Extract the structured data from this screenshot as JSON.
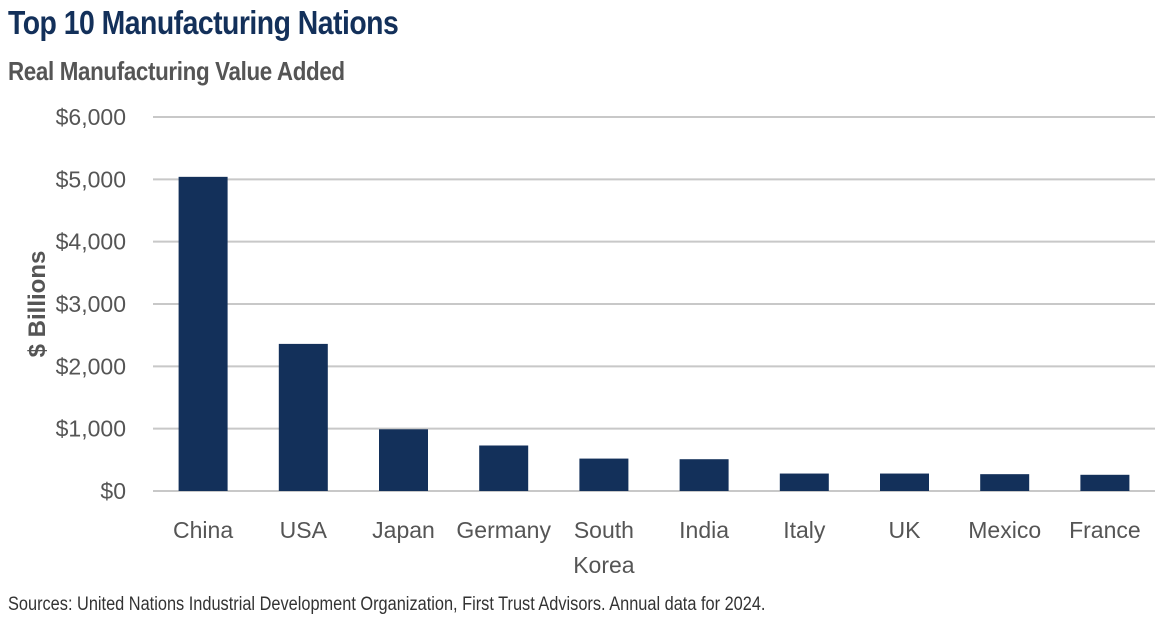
{
  "header": {
    "title": "Top 10 Manufacturing Nations",
    "subtitle": "Real Manufacturing Value Added"
  },
  "footer": {
    "source": "Sources: United Nations Industrial Development Organization, First Trust Advisors. Annual data for 2024."
  },
  "colors": {
    "title": "#13305a",
    "bar": "#13305a",
    "gridline": "#c8c8c8",
    "text": "#555555"
  },
  "chart_data": {
    "type": "bar",
    "title": "Top 10 Manufacturing Nations",
    "subtitle": "Real Manufacturing Value Added",
    "xlabel": "",
    "ylabel": "$ Billions",
    "categories": [
      "China",
      "USA",
      "Japan",
      "Germany",
      "South Korea",
      "India",
      "Italy",
      "UK",
      "Mexico",
      "France"
    ],
    "values": [
      5040,
      2360,
      990,
      730,
      520,
      510,
      280,
      280,
      270,
      260
    ],
    "ylim": [
      0,
      6000
    ],
    "yticks": [
      0,
      1000,
      2000,
      3000,
      4000,
      5000,
      6000
    ],
    "ytick_labels": [
      "$0",
      "$1,000",
      "$2,000",
      "$3,000",
      "$4,000",
      "$5,000",
      "$6,000"
    ],
    "grid": true,
    "legend": "none"
  }
}
